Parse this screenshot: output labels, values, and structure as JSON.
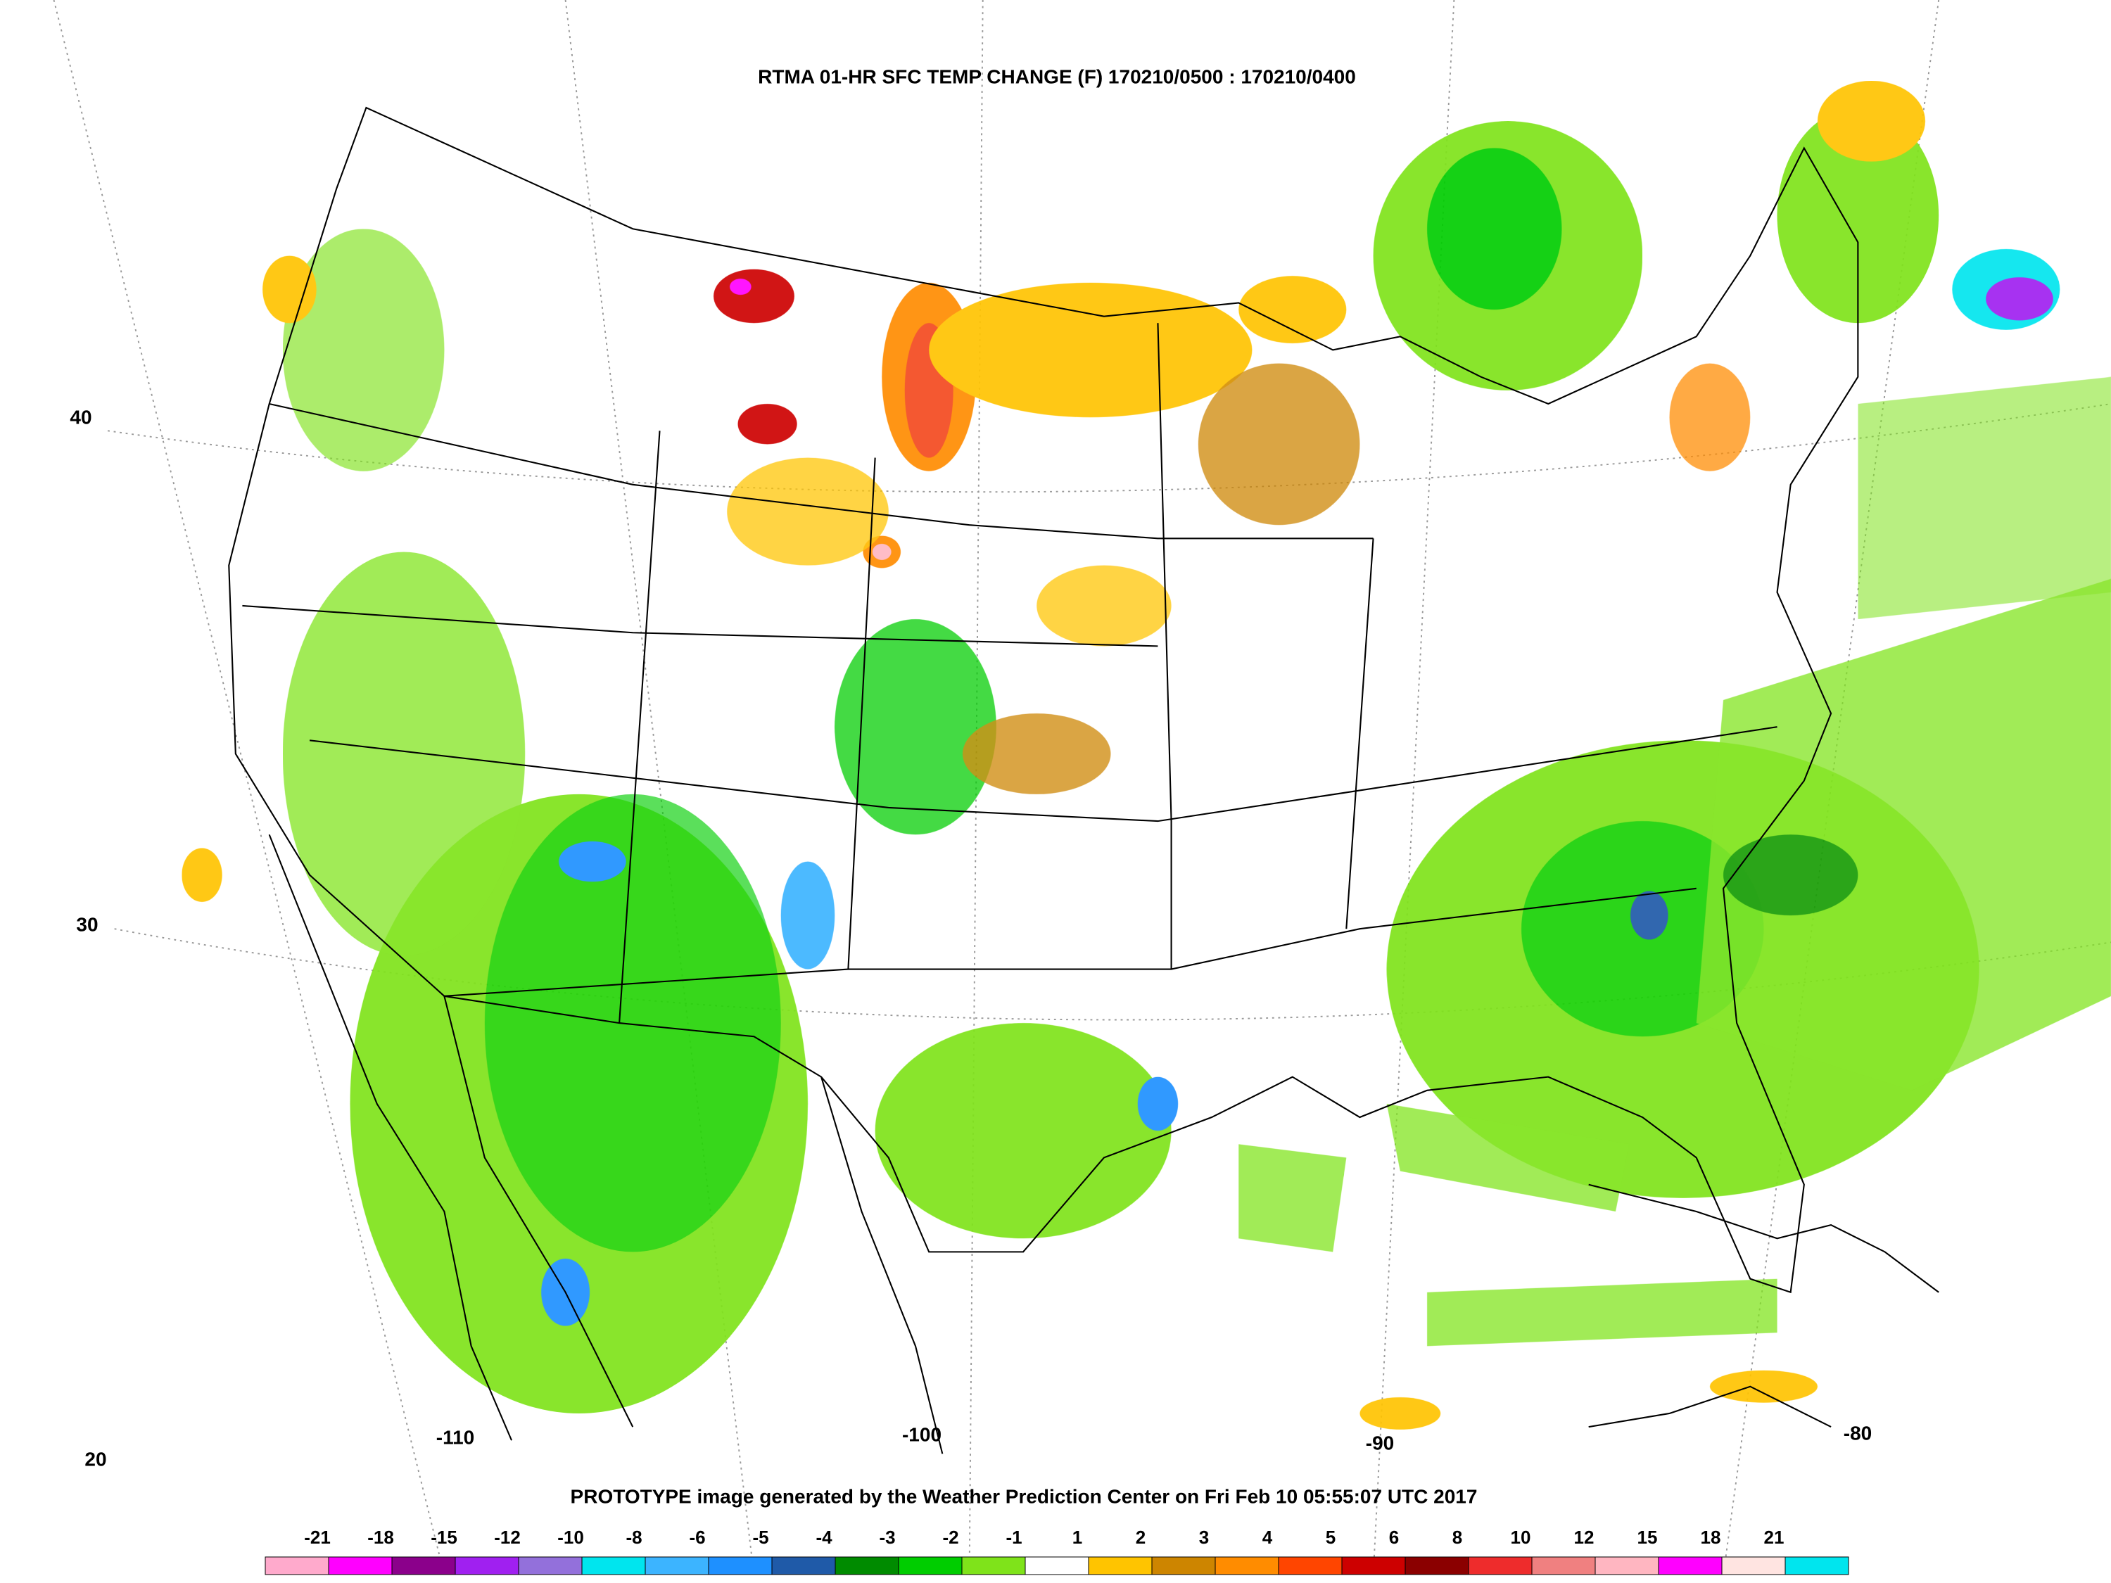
{
  "header": {
    "title": "RTMA 01-HR SFC TEMP CHANGE (F) 170210/0500 : 170210/0400"
  },
  "footer": {
    "text": "PROTOTYPE image generated by the Weather Prediction Center on Fri Feb 10 05:55:07 UTC 2017"
  },
  "latitude_labels": [
    "40",
    "30",
    "20"
  ],
  "longitude_labels": [
    "-110",
    "-100",
    "-90",
    "-80"
  ],
  "legend": {
    "labels": [
      "-21",
      "-18",
      "-15",
      "-12",
      "-10",
      "-8",
      "-6",
      "-5",
      "-4",
      "-3",
      "-2",
      "-1",
      "1",
      "2",
      "3",
      "4",
      "5",
      "6",
      "8",
      "10",
      "12",
      "15",
      "18",
      "21"
    ],
    "colors": [
      "#ffaacc",
      "#ff00ff",
      "#8b008b",
      "#a020f0",
      "#9370db",
      "#00e5ee",
      "#3cb4ff",
      "#1e90ff",
      "#1f5aa8",
      "#008b00",
      "#00cd00",
      "#7fe31a",
      "#ffffff",
      "#ffc400",
      "#cd8500",
      "#ff8c00",
      "#ff4500",
      "#cd0000",
      "#8b0000",
      "#ee2c2c",
      "#f08080",
      "#ffb6c1",
      "#ff00ff",
      "#ffe4e1",
      "#00e5ee"
    ]
  }
}
